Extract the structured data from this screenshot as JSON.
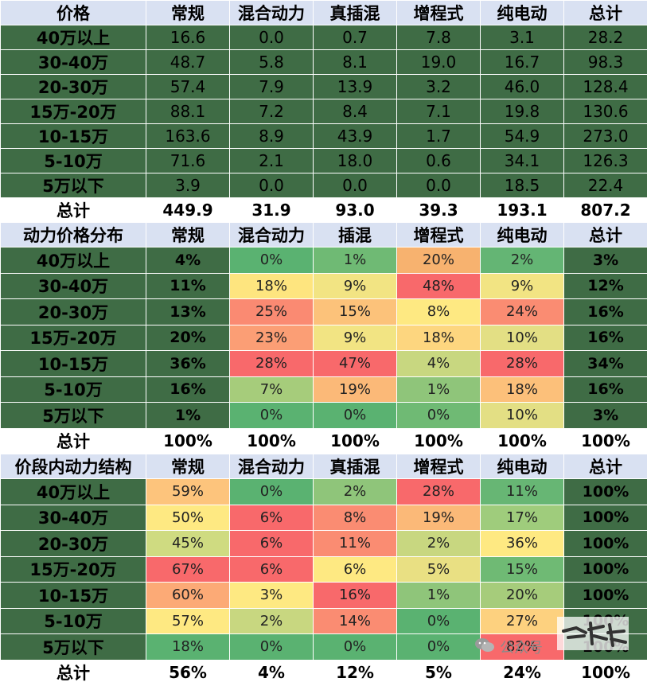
{
  "columns1": [
    "价格",
    "常规",
    "混合动力",
    "真插混",
    "增程式",
    "纯电动",
    "总计"
  ],
  "columns2": [
    "动力价格分布",
    "常规",
    "混合动力",
    "插混",
    "增程式",
    "纯电动",
    "总计"
  ],
  "columns3": [
    "价段内动力结构",
    "常规",
    "混合动力",
    "真插混",
    "增程式",
    "纯电动",
    "总计"
  ],
  "rowLabels": [
    "40万以上",
    "30-40万",
    "20-30万",
    "15万-20万",
    "10-15万",
    "5-10万",
    "5万以下"
  ],
  "totalLabel": "总计",
  "section1": {
    "rows": [
      [
        "16.6",
        "0.0",
        "0.7",
        "7.8",
        "3.1",
        "28.2"
      ],
      [
        "48.7",
        "5.8",
        "8.1",
        "19.0",
        "16.7",
        "98.3"
      ],
      [
        "57.4",
        "7.9",
        "13.9",
        "3.2",
        "46.0",
        "128.4"
      ],
      [
        "88.1",
        "7.2",
        "8.4",
        "7.1",
        "19.8",
        "130.6"
      ],
      [
        "163.6",
        "8.9",
        "43.9",
        "1.7",
        "54.9",
        "273.0"
      ],
      [
        "71.6",
        "2.1",
        "18.0",
        "0.6",
        "34.1",
        "126.3"
      ],
      [
        "3.9",
        "0.0",
        "0.0",
        "0.0",
        "18.5",
        "22.4"
      ]
    ],
    "total": [
      "449.9",
      "31.9",
      "93.0",
      "39.3",
      "193.1",
      "807.2"
    ]
  },
  "section2": {
    "rows": [
      [
        "4%",
        "0%",
        "1%",
        "20%",
        "2%",
        "3%"
      ],
      [
        "11%",
        "18%",
        "9%",
        "48%",
        "9%",
        "12%"
      ],
      [
        "13%",
        "25%",
        "15%",
        "8%",
        "24%",
        "16%"
      ],
      [
        "20%",
        "23%",
        "9%",
        "18%",
        "10%",
        "16%"
      ],
      [
        "36%",
        "28%",
        "47%",
        "4%",
        "28%",
        "34%"
      ],
      [
        "16%",
        "7%",
        "19%",
        "1%",
        "18%",
        "16%"
      ],
      [
        "1%",
        "0%",
        "0%",
        "0%",
        "10%",
        "3%"
      ]
    ],
    "total": [
      "100%",
      "100%",
      "100%",
      "100%",
      "100%",
      "100%"
    ],
    "colors": [
      [
        "#5ab271",
        "#6fba74",
        "#f7b26f",
        "#64b574"
      ],
      [
        "#fee57f",
        "#f2e483",
        "#f8696b",
        "#f2e483"
      ],
      [
        "#fa8a72",
        "#fcc27a",
        "#fee982",
        "#fa8c72"
      ],
      [
        "#fb9e75",
        "#f2e483",
        "#fdd67f",
        "#e3df84"
      ],
      [
        "#f8696b",
        "#f8696b",
        "#c8d780",
        "#f8696b"
      ],
      [
        "#a6cc7b",
        "#fbb978",
        "#8fc57a",
        "#fcc07a"
      ],
      [
        "#5ab271",
        "#5ab271",
        "#6fba74",
        "#e3df84"
      ]
    ]
  },
  "section3": {
    "rows": [
      [
        "59%",
        "0%",
        "2%",
        "28%",
        "11%",
        "100%"
      ],
      [
        "50%",
        "6%",
        "8%",
        "19%",
        "17%",
        "100%"
      ],
      [
        "45%",
        "6%",
        "11%",
        "2%",
        "36%",
        "100%"
      ],
      [
        "67%",
        "6%",
        "6%",
        "5%",
        "15%",
        "100%"
      ],
      [
        "60%",
        "3%",
        "16%",
        "1%",
        "20%",
        "100%"
      ],
      [
        "57%",
        "2%",
        "14%",
        "0%",
        "27%",
        "100%"
      ],
      [
        "18%",
        "0%",
        "0%",
        "0%",
        "82%",
        "100%"
      ]
    ],
    "total": [
      "56%",
      "4%",
      "12%",
      "5%",
      "24%",
      "100%"
    ],
    "colors": [
      [
        "#fdc47c",
        "#5ab271",
        "#8fc57a",
        "#f8696b",
        "#67b674"
      ],
      [
        "#fee982",
        "#f8696b",
        "#fa8c72",
        "#fbb978",
        "#9fcc7c"
      ],
      [
        "#cfdb81",
        "#f8696b",
        "#fa8c72",
        "#c8d780",
        "#fee982"
      ],
      [
        "#f8696b",
        "#f8696b",
        "#fee982",
        "#e9e083",
        "#6fba74"
      ],
      [
        "#fcaa76",
        "#fee982",
        "#f8696b",
        "#8fc57a",
        "#a6cc7b"
      ],
      [
        "#fee982",
        "#c8d780",
        "#fa8c72",
        "#5ab271",
        "#fdd17f"
      ],
      [
        "#5ab271",
        "#5ab271",
        "#5ab271",
        "#5ab271",
        "#f8696b"
      ]
    ]
  },
  "watermark": {
    "text": "公众号",
    "icon": "wechat-icon"
  }
}
